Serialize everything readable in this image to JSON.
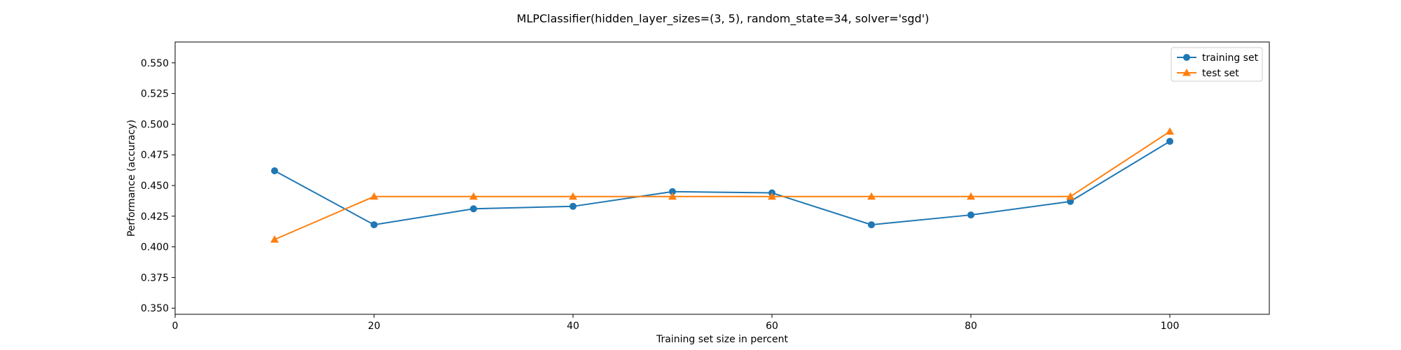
{
  "chart_data": {
    "type": "line",
    "title": "MLPClassifier(hidden_layer_sizes=(3, 5), random_state=34, solver='sgd')",
    "xlabel": "Training set size in percent",
    "ylabel": "Performance (accuracy)",
    "xlim": [
      0,
      110
    ],
    "ylim": [
      0.345,
      0.567
    ],
    "xticks": [
      0,
      20,
      40,
      60,
      80,
      100
    ],
    "xtick_labels": [
      "0",
      "20",
      "40",
      "60",
      "80",
      "100"
    ],
    "yticks": [
      0.35,
      0.375,
      0.4,
      0.425,
      0.45,
      0.475,
      0.5,
      0.525,
      0.55
    ],
    "ytick_labels": [
      "0.350",
      "0.375",
      "0.400",
      "0.425",
      "0.450",
      "0.475",
      "0.500",
      "0.525",
      "0.550"
    ],
    "x": [
      10,
      20,
      30,
      40,
      50,
      60,
      70,
      80,
      90,
      100
    ],
    "series": [
      {
        "name": "training set",
        "marker": "circle",
        "color": "#1f77b4",
        "values": [
          0.462,
          0.418,
          0.431,
          0.433,
          0.445,
          0.444,
          0.418,
          0.426,
          0.437,
          0.486
        ]
      },
      {
        "name": "test set",
        "marker": "triangle",
        "color": "#ff7f0e",
        "values": [
          0.406,
          0.441,
          0.441,
          0.441,
          0.441,
          0.441,
          0.441,
          0.441,
          0.441,
          0.494
        ]
      }
    ],
    "grid": false,
    "legend_position": "top-right"
  }
}
